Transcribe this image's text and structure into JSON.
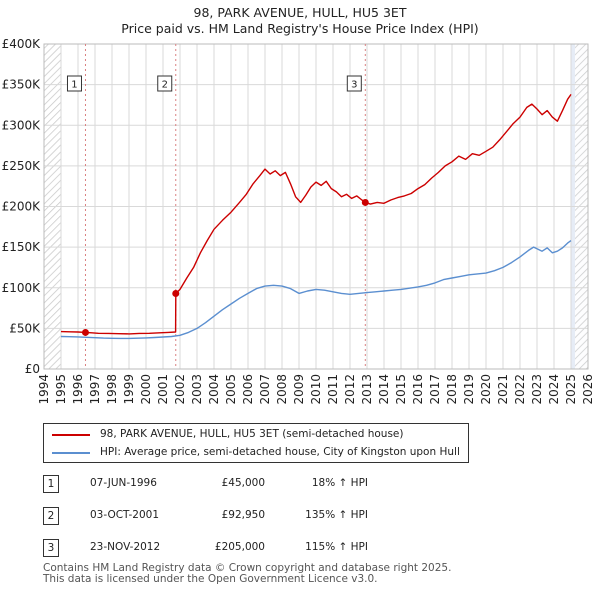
{
  "title": "98, PARK AVENUE, HULL, HU5 3ET",
  "subtitle": "Price paid vs. HM Land Registry's House Price Index (HPI)",
  "colors": {
    "property": "#cc0000",
    "hpi": "#5b8fd0",
    "future_shade": "#e6ecf6",
    "grid": "#d9d9d9"
  },
  "chart_data": {
    "type": "line",
    "x_range": [
      1994,
      2026
    ],
    "ylim": [
      0,
      400000
    ],
    "x_ticks": [
      1994,
      1995,
      1996,
      1997,
      1998,
      1999,
      2000,
      2001,
      2002,
      2003,
      2004,
      2005,
      2006,
      2007,
      2008,
      2009,
      2010,
      2011,
      2012,
      2013,
      2014,
      2015,
      2016,
      2017,
      2018,
      2019,
      2020,
      2021,
      2022,
      2023,
      2024,
      2025,
      2026
    ],
    "y_ticks": [
      {
        "value": 0,
        "label": "£0"
      },
      {
        "value": 50000,
        "label": "£50K"
      },
      {
        "value": 100000,
        "label": "£100K"
      },
      {
        "value": 150000,
        "label": "£150K"
      },
      {
        "value": 200000,
        "label": "£200K"
      },
      {
        "value": 250000,
        "label": "£250K"
      },
      {
        "value": 300000,
        "label": "£300K"
      },
      {
        "value": 350000,
        "label": "£350K"
      },
      {
        "value": 400000,
        "label": "£400K"
      }
    ],
    "hatched_before": 1995,
    "shaded_after": 2025.0,
    "series": [
      {
        "name": "98, PARK AVENUE, HULL, HU5 3ET (semi-detached house)",
        "color": "#cc0000",
        "points": [
          [
            1995.0,
            46000
          ],
          [
            1995.5,
            45800
          ],
          [
            1996.0,
            45500
          ],
          [
            1996.44,
            45000
          ],
          [
            1996.8,
            44600
          ],
          [
            1997.2,
            44000
          ],
          [
            1997.8,
            43800
          ],
          [
            1998.4,
            43500
          ],
          [
            1999.0,
            43200
          ],
          [
            1999.6,
            43800
          ],
          [
            2000.2,
            44000
          ],
          [
            2000.8,
            44500
          ],
          [
            2001.3,
            45000
          ],
          [
            2001.74,
            45500
          ],
          [
            2001.75,
            92950
          ],
          [
            2002.0,
            98000
          ],
          [
            2002.4,
            112000
          ],
          [
            2002.8,
            125000
          ],
          [
            2003.2,
            143000
          ],
          [
            2003.6,
            158000
          ],
          [
            2004.0,
            172000
          ],
          [
            2004.5,
            183000
          ],
          [
            2005.0,
            193000
          ],
          [
            2005.5,
            205000
          ],
          [
            2005.9,
            215000
          ],
          [
            2006.3,
            228000
          ],
          [
            2006.7,
            238000
          ],
          [
            2007.0,
            246000
          ],
          [
            2007.3,
            240000
          ],
          [
            2007.6,
            244000
          ],
          [
            2007.9,
            238000
          ],
          [
            2008.2,
            242000
          ],
          [
            2008.5,
            228000
          ],
          [
            2008.8,
            212000
          ],
          [
            2009.1,
            205000
          ],
          [
            2009.4,
            214000
          ],
          [
            2009.7,
            224000
          ],
          [
            2010.0,
            230000
          ],
          [
            2010.3,
            226000
          ],
          [
            2010.6,
            231000
          ],
          [
            2010.9,
            222000
          ],
          [
            2011.2,
            218000
          ],
          [
            2011.5,
            212000
          ],
          [
            2011.8,
            215000
          ],
          [
            2012.1,
            210000
          ],
          [
            2012.4,
            213000
          ],
          [
            2012.7,
            208000
          ],
          [
            2012.9,
            205000
          ],
          [
            2013.2,
            203000
          ],
          [
            2013.6,
            205000
          ],
          [
            2014.0,
            204000
          ],
          [
            2014.4,
            208000
          ],
          [
            2014.8,
            211000
          ],
          [
            2015.2,
            213000
          ],
          [
            2015.6,
            216000
          ],
          [
            2016.0,
            222000
          ],
          [
            2016.4,
            227000
          ],
          [
            2016.8,
            235000
          ],
          [
            2017.2,
            242000
          ],
          [
            2017.6,
            250000
          ],
          [
            2018.0,
            255000
          ],
          [
            2018.4,
            262000
          ],
          [
            2018.8,
            258000
          ],
          [
            2019.2,
            265000
          ],
          [
            2019.6,
            263000
          ],
          [
            2020.0,
            268000
          ],
          [
            2020.4,
            273000
          ],
          [
            2020.8,
            282000
          ],
          [
            2021.2,
            292000
          ],
          [
            2021.6,
            302000
          ],
          [
            2022.0,
            310000
          ],
          [
            2022.4,
            322000
          ],
          [
            2022.7,
            326000
          ],
          [
            2023.0,
            320000
          ],
          [
            2023.3,
            313000
          ],
          [
            2023.6,
            318000
          ],
          [
            2023.9,
            310000
          ],
          [
            2024.2,
            305000
          ],
          [
            2024.5,
            318000
          ],
          [
            2024.8,
            332000
          ],
          [
            2025.0,
            338000
          ]
        ]
      },
      {
        "name": "HPI: Average price, semi-detached house, City of Kingston upon Hull",
        "color": "#5b8fd0",
        "points": [
          [
            1995.0,
            40000
          ],
          [
            1995.5,
            39800
          ],
          [
            1996.0,
            39500
          ],
          [
            1996.5,
            39000
          ],
          [
            1997.0,
            38500
          ],
          [
            1997.5,
            38000
          ],
          [
            1998.0,
            37800
          ],
          [
            1998.5,
            37700
          ],
          [
            1999.0,
            37600
          ],
          [
            1999.5,
            37900
          ],
          [
            2000.0,
            38300
          ],
          [
            2000.5,
            38800
          ],
          [
            2001.0,
            39400
          ],
          [
            2001.5,
            40000
          ],
          [
            2002.0,
            41500
          ],
          [
            2002.5,
            45000
          ],
          [
            2003.0,
            50000
          ],
          [
            2003.5,
            57000
          ],
          [
            2004.0,
            65000
          ],
          [
            2004.5,
            73000
          ],
          [
            2005.0,
            80000
          ],
          [
            2005.5,
            87000
          ],
          [
            2006.0,
            93000
          ],
          [
            2006.5,
            99000
          ],
          [
            2007.0,
            102000
          ],
          [
            2007.5,
            103000
          ],
          [
            2008.0,
            102000
          ],
          [
            2008.5,
            99000
          ],
          [
            2009.0,
            93000
          ],
          [
            2009.5,
            96000
          ],
          [
            2010.0,
            98000
          ],
          [
            2010.5,
            97000
          ],
          [
            2011.0,
            95000
          ],
          [
            2011.5,
            93000
          ],
          [
            2012.0,
            92000
          ],
          [
            2012.5,
            93000
          ],
          [
            2013.0,
            94000
          ],
          [
            2013.5,
            95000
          ],
          [
            2014.0,
            96000
          ],
          [
            2014.5,
            97000
          ],
          [
            2015.0,
            98000
          ],
          [
            2015.5,
            99500
          ],
          [
            2016.0,
            101000
          ],
          [
            2016.5,
            103000
          ],
          [
            2017.0,
            106000
          ],
          [
            2017.5,
            110000
          ],
          [
            2018.0,
            112000
          ],
          [
            2018.5,
            114000
          ],
          [
            2019.0,
            116000
          ],
          [
            2019.5,
            117000
          ],
          [
            2020.0,
            118000
          ],
          [
            2020.5,
            121000
          ],
          [
            2021.0,
            125000
          ],
          [
            2021.5,
            131000
          ],
          [
            2022.0,
            138000
          ],
          [
            2022.5,
            146000
          ],
          [
            2022.8,
            150000
          ],
          [
            2023.0,
            148000
          ],
          [
            2023.3,
            145000
          ],
          [
            2023.6,
            149000
          ],
          [
            2023.9,
            143000
          ],
          [
            2024.2,
            145000
          ],
          [
            2024.5,
            149000
          ],
          [
            2024.8,
            155000
          ],
          [
            2025.0,
            158000
          ]
        ]
      }
    ],
    "transactions": [
      {
        "label": "1",
        "x": 1996.44,
        "price": 45000
      },
      {
        "label": "2",
        "x": 2001.75,
        "price": 92950
      },
      {
        "label": "3",
        "x": 2012.9,
        "price": 205000
      }
    ]
  },
  "legend": [
    {
      "label": "98, PARK AVENUE, HULL, HU5 3ET (semi-detached house)",
      "color": "#cc0000"
    },
    {
      "label": "HPI: Average price, semi-detached house, City of Kingston upon Hull",
      "color": "#5b8fd0"
    }
  ],
  "table": [
    {
      "num": "1",
      "date": "07-JUN-1996",
      "price": "£45,000",
      "hpi": "18% ↑ HPI"
    },
    {
      "num": "2",
      "date": "03-OCT-2001",
      "price": "£92,950",
      "hpi": "135% ↑ HPI"
    },
    {
      "num": "3",
      "date": "23-NOV-2012",
      "price": "£205,000",
      "hpi": "115% ↑ HPI"
    }
  ],
  "footer": [
    "Contains HM Land Registry data © Crown copyright and database right 2025.",
    "This data is licensed under the Open Government Licence v3.0."
  ]
}
